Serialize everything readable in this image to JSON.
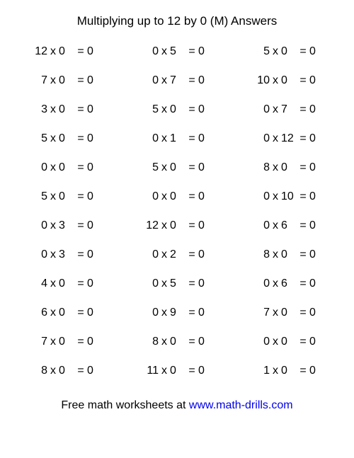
{
  "title": "Multiplying up to 12 by 0 (M) Answers",
  "operator": "x",
  "equals": "=",
  "problems": [
    [
      {
        "a": "12",
        "b": "0",
        "r": "0"
      },
      {
        "a": "0",
        "b": "5",
        "r": "0"
      },
      {
        "a": "5",
        "b": "0",
        "r": "0"
      }
    ],
    [
      {
        "a": "7",
        "b": "0",
        "r": "0"
      },
      {
        "a": "0",
        "b": "7",
        "r": "0"
      },
      {
        "a": "10",
        "b": "0",
        "r": "0"
      }
    ],
    [
      {
        "a": "3",
        "b": "0",
        "r": "0"
      },
      {
        "a": "5",
        "b": "0",
        "r": "0"
      },
      {
        "a": "0",
        "b": "7",
        "r": "0"
      }
    ],
    [
      {
        "a": "5",
        "b": "0",
        "r": "0"
      },
      {
        "a": "0",
        "b": "1",
        "r": "0"
      },
      {
        "a": "0",
        "b": "12",
        "r": "0"
      }
    ],
    [
      {
        "a": "0",
        "b": "0",
        "r": "0"
      },
      {
        "a": "5",
        "b": "0",
        "r": "0"
      },
      {
        "a": "8",
        "b": "0",
        "r": "0"
      }
    ],
    [
      {
        "a": "5",
        "b": "0",
        "r": "0"
      },
      {
        "a": "0",
        "b": "0",
        "r": "0"
      },
      {
        "a": "0",
        "b": "10",
        "r": "0"
      }
    ],
    [
      {
        "a": "0",
        "b": "3",
        "r": "0"
      },
      {
        "a": "12",
        "b": "0",
        "r": "0"
      },
      {
        "a": "0",
        "b": "6",
        "r": "0"
      }
    ],
    [
      {
        "a": "0",
        "b": "3",
        "r": "0"
      },
      {
        "a": "0",
        "b": "2",
        "r": "0"
      },
      {
        "a": "8",
        "b": "0",
        "r": "0"
      }
    ],
    [
      {
        "a": "4",
        "b": "0",
        "r": "0"
      },
      {
        "a": "0",
        "b": "5",
        "r": "0"
      },
      {
        "a": "0",
        "b": "6",
        "r": "0"
      }
    ],
    [
      {
        "a": "6",
        "b": "0",
        "r": "0"
      },
      {
        "a": "0",
        "b": "9",
        "r": "0"
      },
      {
        "a": "7",
        "b": "0",
        "r": "0"
      }
    ],
    [
      {
        "a": "7",
        "b": "0",
        "r": "0"
      },
      {
        "a": "8",
        "b": "0",
        "r": "0"
      },
      {
        "a": "0",
        "b": "0",
        "r": "0"
      }
    ],
    [
      {
        "a": "8",
        "b": "0",
        "r": "0"
      },
      {
        "a": "11",
        "b": "0",
        "r": "0"
      },
      {
        "a": "1",
        "b": "0",
        "r": "0"
      }
    ]
  ],
  "footer_text": "Free math worksheets at ",
  "footer_link": "www.math-drills.com",
  "colors": {
    "text": "#000000",
    "background": "#ffffff",
    "link": "#0000ee"
  },
  "typography": {
    "title_fontsize": 17,
    "body_fontsize": 16,
    "font_family": "Arial"
  }
}
